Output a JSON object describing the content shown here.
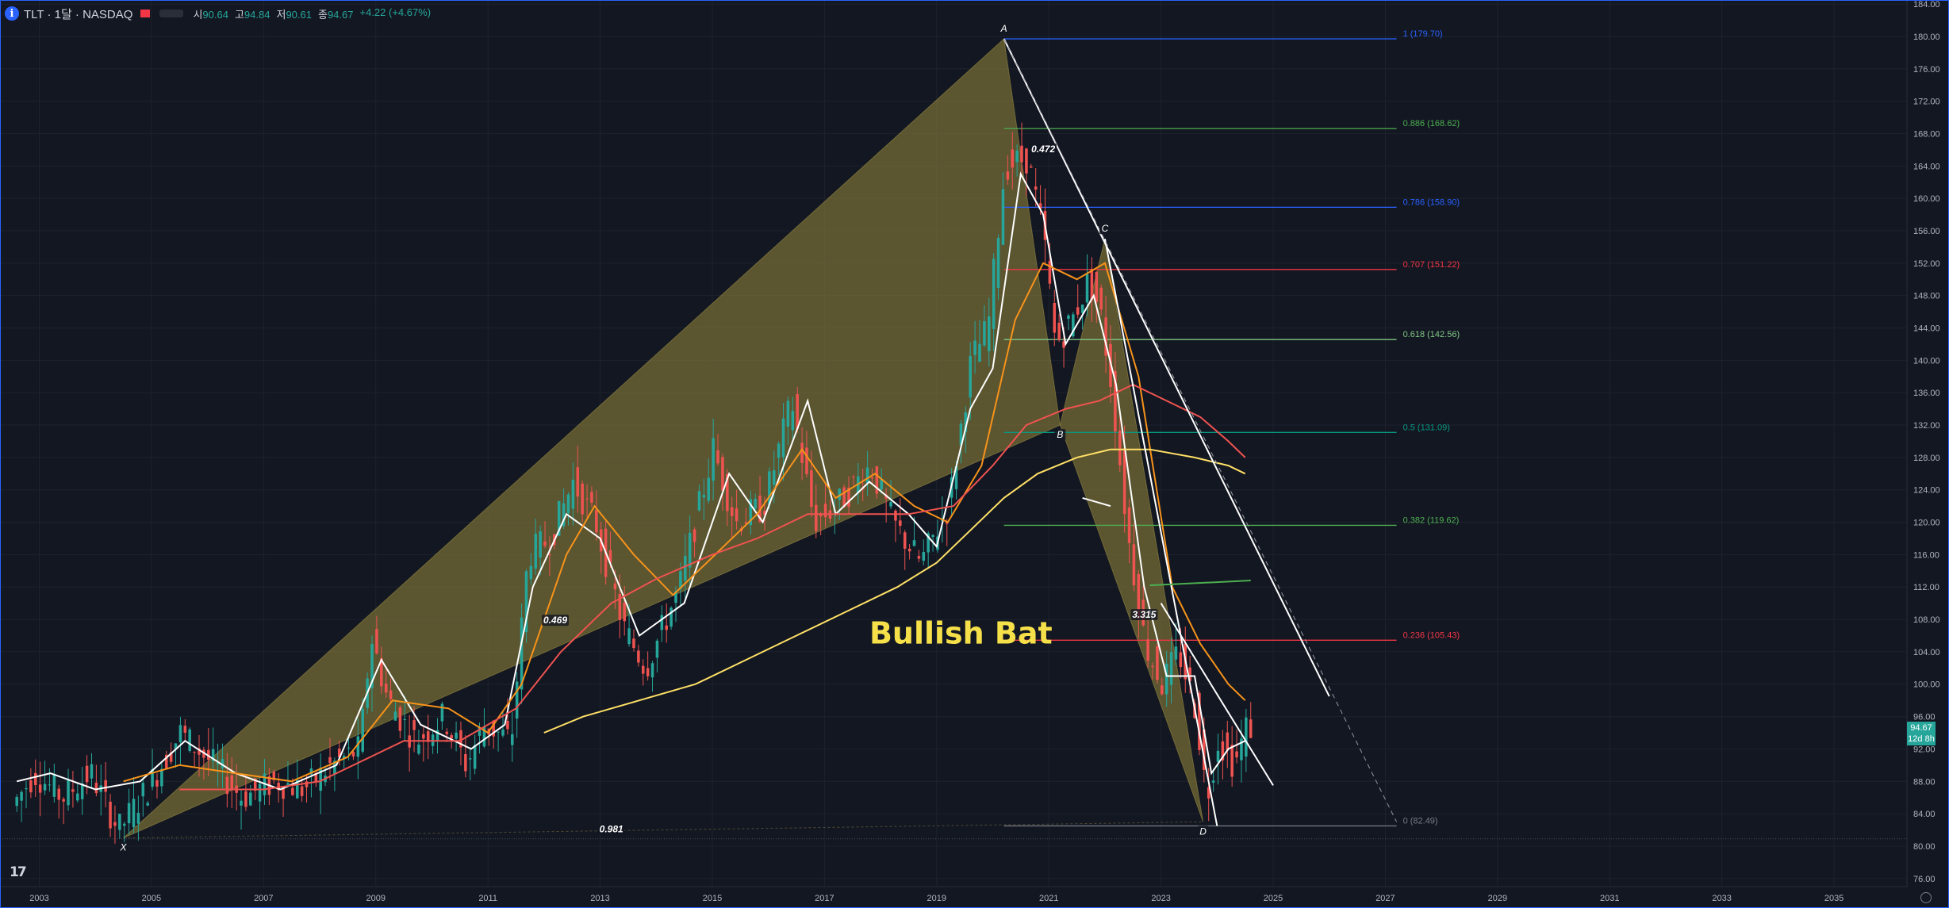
{
  "header": {
    "info_glyph": "i",
    "title": "TLT · 1달 · NASDAQ",
    "ohlc": [
      {
        "label": "시",
        "value": "90.64"
      },
      {
        "label": "고",
        "value": "94.84"
      },
      {
        "label": "저",
        "value": "90.61"
      },
      {
        "label": "종",
        "value": "94.67"
      },
      {
        "label": "",
        "value": "+4.22 (+4.67%)"
      }
    ]
  },
  "price_tag": {
    "price": "94.67",
    "countdown": "12d 8h"
  },
  "logo_text": "17",
  "colors": {
    "background": "#131722",
    "grid": "#1e222d",
    "up": "#26a69a",
    "down": "#ef5350",
    "pattern_fill": "#8c7f3a",
    "pattern_text": "#f5e04a"
  },
  "chart_data": {
    "type": "candlestick",
    "symbol": "TLT",
    "interval": "1달",
    "exchange": "NASDAQ",
    "x_range": [
      2002.3,
      2036.3
    ],
    "y_range": [
      75,
      184.5
    ],
    "y_ticks": [
      "76.00",
      "80.00",
      "84.00",
      "88.00",
      "92.00",
      "96.00",
      "100.00",
      "104.00",
      "108.00",
      "112.00",
      "116.00",
      "120.00",
      "124.00",
      "128.00",
      "132.00",
      "136.00",
      "140.00",
      "144.00",
      "148.00",
      "152.00",
      "156.00",
      "160.00",
      "164.00",
      "168.00",
      "172.00",
      "176.00",
      "180.00",
      "184.00"
    ],
    "x_ticks": [
      "2003",
      "2005",
      "2007",
      "2009",
      "2011",
      "2013",
      "2015",
      "2017",
      "2019",
      "2021",
      "2023",
      "2025",
      "2027",
      "2029",
      "2031",
      "2033",
      "2035"
    ],
    "price_path": [
      [
        2002.6,
        85
      ],
      [
        2003.0,
        89
      ],
      [
        2003.5,
        86
      ],
      [
        2004.0,
        89
      ],
      [
        2004.5,
        82
      ],
      [
        2005.0,
        87
      ],
      [
        2005.6,
        94
      ],
      [
        2006.2,
        90
      ],
      [
        2006.7,
        86
      ],
      [
        2007.3,
        88
      ],
      [
        2007.8,
        87
      ],
      [
        2008.3,
        90
      ],
      [
        2008.8,
        92
      ],
      [
        2009.0,
        106
      ],
      [
        2009.3,
        98
      ],
      [
        2009.8,
        93
      ],
      [
        2010.3,
        96
      ],
      [
        2010.7,
        90
      ],
      [
        2011.0,
        95
      ],
      [
        2011.5,
        93
      ],
      [
        2011.8,
        116
      ],
      [
        2012.2,
        118
      ],
      [
        2012.6,
        125
      ],
      [
        2013.0,
        120
      ],
      [
        2013.5,
        107
      ],
      [
        2013.9,
        102
      ],
      [
        2014.5,
        112
      ],
      [
        2015.1,
        129
      ],
      [
        2015.5,
        120
      ],
      [
        2016.0,
        122
      ],
      [
        2016.5,
        135
      ],
      [
        2016.9,
        120
      ],
      [
        2017.3,
        122
      ],
      [
        2017.9,
        127
      ],
      [
        2018.3,
        120
      ],
      [
        2018.8,
        115
      ],
      [
        2019.3,
        122
      ],
      [
        2019.7,
        140
      ],
      [
        2020.0,
        144
      ],
      [
        2020.3,
        164
      ],
      [
        2020.7,
        165
      ],
      [
        2021.0,
        155
      ],
      [
        2021.2,
        142
      ],
      [
        2021.5,
        145
      ],
      [
        2021.8,
        150
      ],
      [
        2022.0,
        146
      ],
      [
        2022.2,
        137
      ],
      [
        2022.5,
        118
      ],
      [
        2022.8,
        105
      ],
      [
        2023.1,
        100
      ],
      [
        2023.4,
        104
      ],
      [
        2023.7,
        97
      ],
      [
        2023.9,
        86
      ],
      [
        2024.1,
        93
      ],
      [
        2024.4,
        90
      ],
      [
        2024.6,
        94.67
      ]
    ],
    "moving_averages": [
      {
        "color": "#ffffff",
        "points": [
          [
            2002.6,
            88
          ],
          [
            2003.2,
            89
          ],
          [
            2004.0,
            87
          ],
          [
            2004.8,
            88
          ],
          [
            2005.6,
            93
          ],
          [
            2006.5,
            89
          ],
          [
            2007.3,
            87
          ],
          [
            2008.3,
            90
          ],
          [
            2009.1,
            103
          ],
          [
            2009.8,
            95
          ],
          [
            2010.7,
            92
          ],
          [
            2011.3,
            95
          ],
          [
            2011.8,
            112
          ],
          [
            2012.4,
            121
          ],
          [
            2013.0,
            118
          ],
          [
            2013.7,
            106
          ],
          [
            2014.5,
            110
          ],
          [
            2015.3,
            126
          ],
          [
            2015.9,
            120
          ],
          [
            2016.7,
            135
          ],
          [
            2017.2,
            121
          ],
          [
            2017.8,
            125
          ],
          [
            2018.5,
            121
          ],
          [
            2019.0,
            117
          ],
          [
            2019.6,
            134
          ],
          [
            2020.0,
            139
          ],
          [
            2020.5,
            163
          ],
          [
            2020.9,
            158
          ],
          [
            2021.3,
            142
          ],
          [
            2021.8,
            148
          ],
          [
            2022.2,
            137
          ],
          [
            2022.7,
            112
          ],
          [
            2023.1,
            101
          ],
          [
            2023.6,
            101
          ],
          [
            2023.9,
            89
          ],
          [
            2024.2,
            92
          ],
          [
            2024.5,
            93
          ]
        ]
      },
      {
        "color": "#f7931a",
        "points": [
          [
            2004.5,
            88
          ],
          [
            2005.5,
            90
          ],
          [
            2006.5,
            89
          ],
          [
            2007.5,
            88
          ],
          [
            2008.5,
            91
          ],
          [
            2009.3,
            98
          ],
          [
            2010.3,
            97
          ],
          [
            2011.0,
            94
          ],
          [
            2011.6,
            100
          ],
          [
            2012.4,
            116
          ],
          [
            2012.9,
            122
          ],
          [
            2013.6,
            116
          ],
          [
            2014.3,
            111
          ],
          [
            2015.2,
            117
          ],
          [
            2015.8,
            121
          ],
          [
            2016.6,
            129
          ],
          [
            2017.2,
            123
          ],
          [
            2017.9,
            126
          ],
          [
            2018.6,
            122
          ],
          [
            2019.2,
            120
          ],
          [
            2019.8,
            127
          ],
          [
            2020.4,
            145
          ],
          [
            2020.9,
            152
          ],
          [
            2021.5,
            150
          ],
          [
            2022.0,
            152
          ],
          [
            2022.6,
            138
          ],
          [
            2023.2,
            112
          ],
          [
            2023.7,
            105
          ],
          [
            2024.2,
            100
          ],
          [
            2024.5,
            98
          ]
        ]
      },
      {
        "color": "#ef5350",
        "points": [
          [
            2005.5,
            87
          ],
          [
            2007.0,
            87
          ],
          [
            2008.0,
            88
          ],
          [
            2009.5,
            93
          ],
          [
            2010.5,
            93
          ],
          [
            2011.5,
            97
          ],
          [
            2012.3,
            104
          ],
          [
            2013.2,
            110
          ],
          [
            2014.0,
            113
          ],
          [
            2015.0,
            116
          ],
          [
            2015.8,
            118
          ],
          [
            2016.7,
            121
          ],
          [
            2017.5,
            121
          ],
          [
            2018.5,
            121
          ],
          [
            2019.3,
            122
          ],
          [
            2020.0,
            127
          ],
          [
            2020.6,
            132
          ],
          [
            2021.3,
            134
          ],
          [
            2021.9,
            135
          ],
          [
            2022.5,
            137
          ],
          [
            2023.1,
            135
          ],
          [
            2023.7,
            133
          ],
          [
            2024.2,
            130
          ],
          [
            2024.5,
            128
          ]
        ]
      },
      {
        "color": "#ffe066",
        "points": [
          [
            2012.0,
            94
          ],
          [
            2012.7,
            96
          ],
          [
            2013.7,
            98
          ],
          [
            2014.7,
            100
          ],
          [
            2015.6,
            103
          ],
          [
            2016.5,
            106
          ],
          [
            2017.4,
            109
          ],
          [
            2018.3,
            112
          ],
          [
            2019.0,
            115
          ],
          [
            2019.6,
            119
          ],
          [
            2020.2,
            123
          ],
          [
            2020.8,
            126
          ],
          [
            2021.5,
            128
          ],
          [
            2022.1,
            129
          ],
          [
            2022.8,
            129
          ],
          [
            2023.6,
            128
          ],
          [
            2024.2,
            127
          ],
          [
            2024.5,
            126
          ]
        ]
      }
    ],
    "harmonic_pattern": {
      "name": "Bullish Bat",
      "points": [
        {
          "label": "X",
          "date": 2004.5,
          "price": 81.0
        },
        {
          "label": "A",
          "date": 2020.2,
          "price": 179.7
        },
        {
          "label": "B",
          "date": 2021.2,
          "price": 132.0
        },
        {
          "label": "C",
          "date": 2022.0,
          "price": 155.0
        },
        {
          "label": "D",
          "date": 2023.75,
          "price": 83.0
        }
      ],
      "ratios": [
        {
          "text": "0.469",
          "date": 2012.2,
          "price": 107.6
        },
        {
          "text": "0.472",
          "date": 2020.9,
          "price": 165.8
        },
        {
          "text": "3.315",
          "date": 2022.7,
          "price": 108.3
        },
        {
          "text": "0.981",
          "date": 2013.2,
          "price": 81.8
        }
      ]
    },
    "fibonacci": {
      "start_date": 2020.2,
      "end_date": 2027.2,
      "levels": [
        {
          "ratio": "1",
          "price": 179.7,
          "color": "#2962ff",
          "label": "1 (179.70)"
        },
        {
          "ratio": "0.886",
          "price": 168.62,
          "color": "#4caf50",
          "label": "0.886 (168.62)"
        },
        {
          "ratio": "0.786",
          "price": 158.9,
          "color": "#2962ff",
          "label": "0.786 (158.90)"
        },
        {
          "ratio": "0.707",
          "price": 151.22,
          "color": "#f23645",
          "label": "0.707 (151.22)"
        },
        {
          "ratio": "0.618",
          "price": 142.56,
          "color": "#81c784",
          "label": "0.618 (142.56)"
        },
        {
          "ratio": "0.5",
          "price": 131.09,
          "color": "#089981",
          "label": "0.5 (131.09)"
        },
        {
          "ratio": "0.382",
          "price": 119.62,
          "color": "#4caf50",
          "label": "0.382 (119.62)"
        },
        {
          "ratio": "0.236",
          "price": 105.43,
          "color": "#f23645",
          "label": "0.236 (105.43)"
        },
        {
          "ratio": "0",
          "price": 82.49,
          "color": "#787b86",
          "label": "0 (82.49)"
        }
      ]
    },
    "trendlines": [
      {
        "style": "solid",
        "from": [
          2020.2,
          179.7
        ],
        "to": [
          2026.0,
          98.5
        ]
      },
      {
        "style": "solid",
        "from": [
          2022.0,
          155.0
        ],
        "to": [
          2024.0,
          82.5
        ]
      },
      {
        "style": "solid",
        "from": [
          2023.0,
          110.0
        ],
        "to": [
          2025.0,
          87.5
        ]
      },
      {
        "style": "solid",
        "from": [
          2021.6,
          123.0
        ],
        "to": [
          2022.1,
          122.0
        ]
      },
      {
        "style": "dashed",
        "from": [
          2020.2,
          179.7
        ],
        "to": [
          2027.2,
          83.0
        ]
      }
    ],
    "green_line": {
      "from": [
        2022.8,
        112.2
      ],
      "to": [
        2024.6,
        112.8
      ]
    }
  }
}
